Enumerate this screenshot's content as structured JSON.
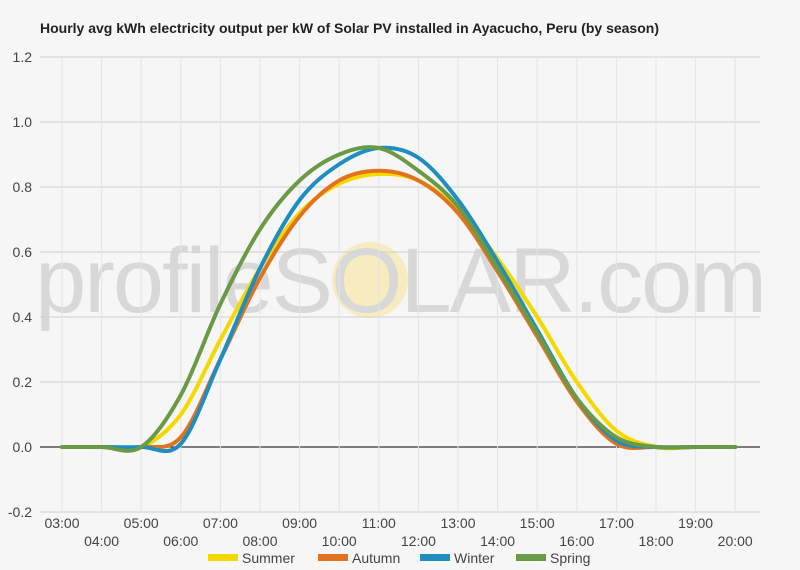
{
  "chart_data": {
    "type": "line",
    "title": "Hourly avg kWh electricity output per kW of Solar PV installed in Ayacucho, Peru (by season)",
    "xlabel": "",
    "ylabel": "",
    "ylim": [
      -0.2,
      1.2
    ],
    "yticks": [
      "-0.2",
      "0.0",
      "0.2",
      "0.4",
      "0.6",
      "0.8",
      "1.0",
      "1.2"
    ],
    "x": [
      "03:00",
      "04:00",
      "05:00",
      "06:00",
      "07:00",
      "08:00",
      "09:00",
      "10:00",
      "11:00",
      "12:00",
      "13:00",
      "14:00",
      "15:00",
      "16:00",
      "17:00",
      "18:00",
      "19:00",
      "20:00"
    ],
    "grid": true,
    "legend": "bottom",
    "series": [
      {
        "name": "Summer",
        "color": "#f5d800",
        "values": [
          0.0,
          0.0,
          0.0,
          0.1,
          0.33,
          0.55,
          0.72,
          0.81,
          0.84,
          0.82,
          0.73,
          0.58,
          0.4,
          0.2,
          0.05,
          0.0,
          0.0,
          0.0
        ]
      },
      {
        "name": "Autumn",
        "color": "#e2731e",
        "values": [
          0.0,
          0.0,
          0.0,
          0.03,
          0.27,
          0.52,
          0.71,
          0.82,
          0.85,
          0.82,
          0.72,
          0.54,
          0.34,
          0.14,
          0.01,
          0.0,
          0.0,
          0.0
        ]
      },
      {
        "name": "Winter",
        "color": "#1f8dbf",
        "values": [
          0.0,
          0.0,
          0.0,
          0.01,
          0.27,
          0.55,
          0.76,
          0.87,
          0.92,
          0.89,
          0.76,
          0.57,
          0.36,
          0.15,
          0.02,
          0.0,
          0.0,
          0.0
        ]
      },
      {
        "name": "Spring",
        "color": "#6a9a45",
        "values": [
          0.0,
          0.0,
          0.0,
          0.16,
          0.44,
          0.67,
          0.82,
          0.9,
          0.92,
          0.85,
          0.74,
          0.55,
          0.35,
          0.15,
          0.03,
          0.0,
          0.0,
          0.0
        ]
      }
    ],
    "watermark": "profileSOLAR.com"
  }
}
